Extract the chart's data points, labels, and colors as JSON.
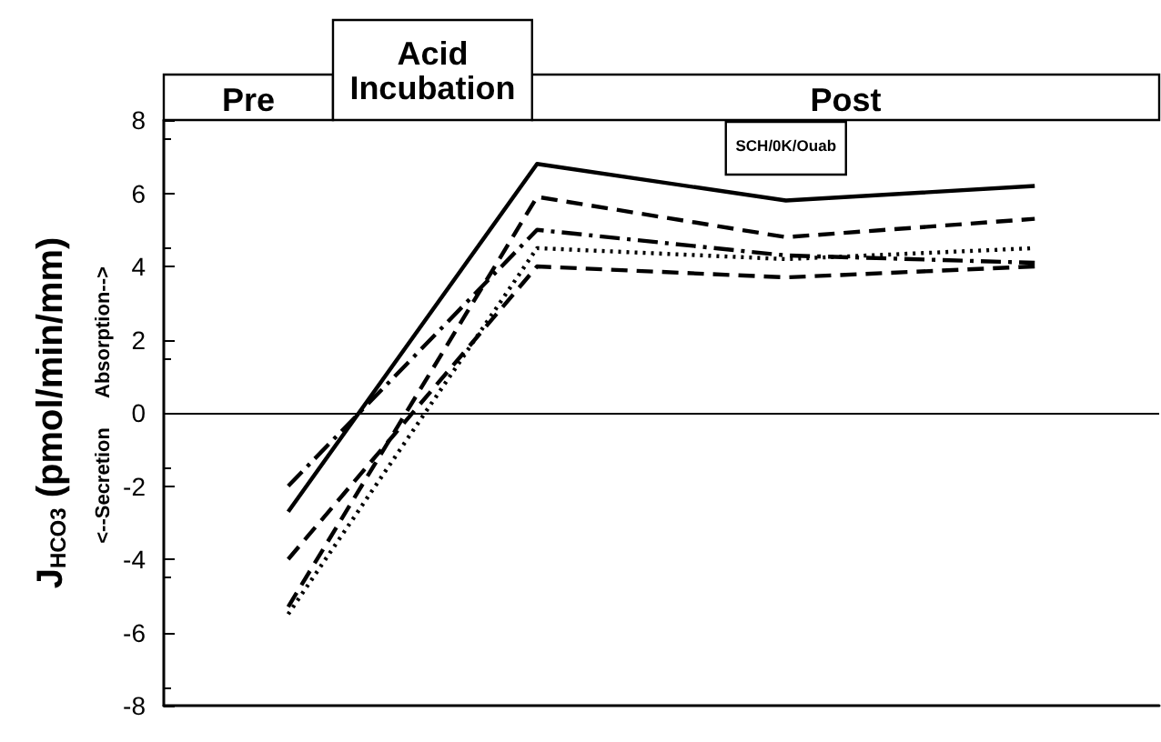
{
  "chart_data": {
    "type": "line",
    "ylabel": "J$_{HCO3}$ (pmol/min/mm)",
    "annotations": [
      "Pre",
      "Acid\nIncubation",
      "Post",
      "SCH/0K/Ouab",
      "<--Secretion",
      "Absorption-->"
    ],
    "categories": [
      null,
      null,
      null,
      null
    ],
    "ylim": [
      -8,
      8
    ],
    "yticks": [
      -8,
      -6,
      -4,
      -2,
      0,
      2,
      4,
      6,
      8
    ],
    "tick_labels": "y",
    "grid": false,
    "marker": "none",
    "ref_lines": [
      {
        "axis": "y",
        "value": 0,
        "color": "#000000",
        "line_style": "solid"
      }
    ],
    "series": [
      {
        "color": "#000000",
        "line_style": "solid",
        "values": [
          -2.7,
          6.8,
          5.8,
          6.2
        ]
      },
      {
        "color": "#000000",
        "line_style": "dashed",
        "values": [
          -5.3,
          5.9,
          4.8,
          5.3
        ]
      },
      {
        "color": "#000000",
        "line_style": "dashdot",
        "values": [
          -2,
          5,
          4.3,
          4.1
        ]
      },
      {
        "color": "#000000",
        "line_style": "dotted",
        "values": [
          -5.5,
          4.5,
          4.2,
          4.5
        ]
      },
      {
        "color": "#000000",
        "line_style": "dashed",
        "values": [
          -4,
          4,
          3.7,
          4
        ]
      }
    ]
  }
}
